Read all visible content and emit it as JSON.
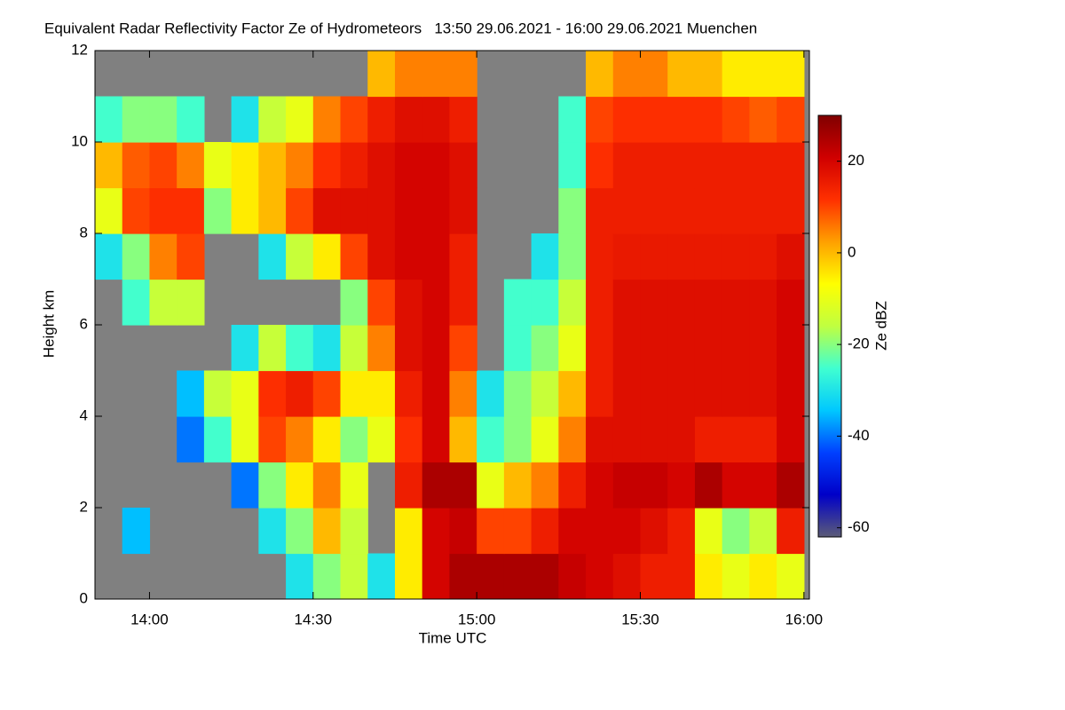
{
  "chart_data": {
    "type": "heatmap",
    "title": "Equivalent Radar Reflectivity Factor Ze of Hydrometeors   13:50 29.06.2021 - 16:00 29.06.2021 Muenchen",
    "xlabel": "Time UTC",
    "ylabel": "Height km",
    "colorbar_label": "Ze dBZ",
    "x": [
      832.5,
      837.5,
      842.5,
      847.5,
      852.5,
      857.5,
      862.5,
      867.5,
      872.5,
      877.5,
      882.5,
      887.5,
      892.5,
      897.5,
      902.5,
      907.5,
      912.5,
      917.5,
      922.5,
      927.5,
      932.5,
      937.5,
      942.5,
      947.5,
      952.5,
      957.5
    ],
    "y": [
      0.5,
      1.5,
      2.5,
      3.5,
      4.5,
      5.5,
      6.5,
      7.5,
      8.5,
      9.5,
      10.5,
      11.5
    ],
    "z": [
      [
        null,
        null,
        null,
        null,
        null,
        null,
        null,
        -30,
        -20,
        -15,
        -30,
        -5,
        20,
        25,
        25,
        25,
        25,
        22,
        20,
        18,
        15,
        15,
        -5,
        -10,
        -5,
        -10
      ],
      [
        null,
        -35,
        null,
        null,
        null,
        null,
        -30,
        -20,
        0,
        -15,
        null,
        -5,
        20,
        22,
        10,
        10,
        15,
        20,
        20,
        20,
        18,
        15,
        -10,
        -20,
        -15,
        15
      ],
      [
        null,
        null,
        null,
        null,
        null,
        -40,
        -20,
        -5,
        5,
        -10,
        null,
        15,
        25,
        25,
        -10,
        0,
        5,
        15,
        20,
        22,
        22,
        20,
        25,
        20,
        20,
        25
      ],
      [
        null,
        null,
        null,
        -40,
        -25,
        -10,
        10,
        5,
        -5,
        -20,
        -10,
        12,
        20,
        0,
        -25,
        -20,
        -10,
        5,
        18,
        18,
        18,
        18,
        15,
        15,
        15,
        20
      ],
      [
        null,
        null,
        null,
        -35,
        -15,
        -10,
        12,
        15,
        10,
        -5,
        -5,
        15,
        20,
        5,
        -30,
        -20,
        -15,
        0,
        15,
        18,
        18,
        18,
        18,
        18,
        18,
        20
      ],
      [
        null,
        null,
        null,
        null,
        null,
        -30,
        -15,
        -25,
        -30,
        -15,
        5,
        18,
        20,
        10,
        null,
        -25,
        -20,
        -10,
        15,
        18,
        18,
        18,
        18,
        18,
        18,
        20
      ],
      [
        null,
        -25,
        -15,
        -15,
        null,
        null,
        null,
        null,
        null,
        -20,
        10,
        18,
        20,
        15,
        null,
        -25,
        -25,
        -15,
        15,
        18,
        18,
        18,
        18,
        18,
        18,
        20
      ],
      [
        -30,
        -20,
        5,
        10,
        null,
        null,
        -30,
        -15,
        -5,
        10,
        18,
        20,
        20,
        15,
        null,
        null,
        -30,
        -20,
        15,
        16,
        16,
        16,
        16,
        16,
        16,
        18
      ],
      [
        -10,
        10,
        12,
        12,
        -20,
        -5,
        0,
        10,
        18,
        18,
        18,
        20,
        20,
        18,
        null,
        null,
        null,
        -20,
        15,
        15,
        15,
        15,
        15,
        15,
        15,
        15
      ],
      [
        0,
        8,
        10,
        5,
        -10,
        -5,
        0,
        5,
        12,
        15,
        18,
        20,
        20,
        18,
        null,
        null,
        null,
        -25,
        12,
        15,
        15,
        15,
        15,
        15,
        15,
        15
      ],
      [
        -25,
        -20,
        -20,
        -25,
        null,
        -30,
        -15,
        -10,
        5,
        10,
        15,
        18,
        18,
        15,
        null,
        null,
        null,
        -25,
        10,
        12,
        12,
        12,
        12,
        10,
        8,
        10
      ],
      [
        null,
        null,
        null,
        null,
        null,
        null,
        null,
        null,
        null,
        null,
        0,
        5,
        5,
        5,
        null,
        null,
        null,
        null,
        0,
        5,
        5,
        0,
        0,
        -5,
        -5,
        -5
      ]
    ],
    "xlim": [
      830,
      961
    ],
    "ylim": [
      0,
      12
    ],
    "zlim": [
      -62,
      30
    ],
    "xticks": [
      {
        "value": 840,
        "label": "14:00"
      },
      {
        "value": 870,
        "label": "14:30"
      },
      {
        "value": 900,
        "label": "15:00"
      },
      {
        "value": 930,
        "label": "15:30"
      },
      {
        "value": 960,
        "label": "16:00"
      }
    ],
    "yticks": [
      0,
      2,
      4,
      6,
      8,
      10,
      12
    ],
    "zticks": [
      -60,
      -40,
      -20,
      0,
      20
    ],
    "colorscale": [
      "#5c5c78",
      "#0000c8",
      "#0040ff",
      "#00c8ff",
      "#40ffd0",
      "#c0ff40",
      "#ffff00",
      "#ffa000",
      "#ff3000",
      "#d00000",
      "#800000"
    ],
    "missing_color": "#808080"
  }
}
